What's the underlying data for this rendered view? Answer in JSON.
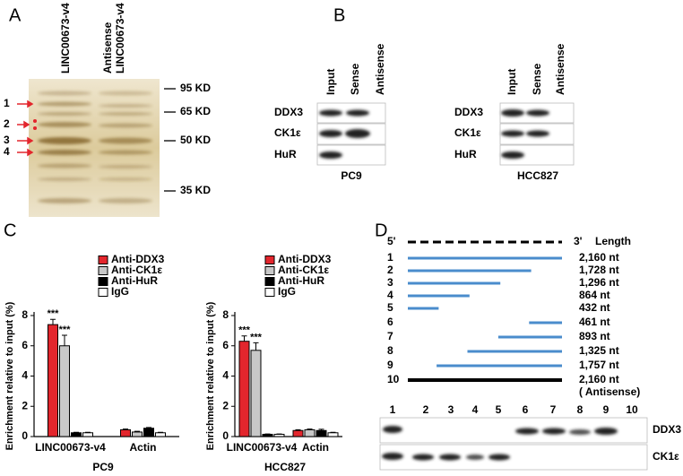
{
  "panel_a": {
    "label": "A",
    "lanes": [
      [
        "LINC00673-v4"
      ],
      [
        "Antisense",
        "LINC00673-v4"
      ]
    ],
    "markers": [
      "95 KD",
      "65 KD",
      "50 KD",
      "35 KD"
    ],
    "bands": [
      "1",
      "2",
      "3",
      "4"
    ]
  },
  "panel_b": {
    "label": "B",
    "blots": [
      {
        "cell": "PC9",
        "columns": [
          "Input",
          "Sense",
          "Antisense"
        ],
        "rows": [
          "DDX3",
          "CK1ε",
          "HuR"
        ]
      },
      {
        "cell": "HCC827",
        "columns": [
          "Input",
          "Sense",
          "Antisense"
        ],
        "rows": [
          "DDX3",
          "CK1ε",
          "HuR"
        ]
      }
    ]
  },
  "panel_c": {
    "label": "C"
  },
  "chart_data": [
    {
      "type": "bar",
      "title": "PC9",
      "ylabel": "Enrichment relative to input (%)",
      "categories": [
        "LINC00673-v4",
        "Actin"
      ],
      "ylim": [
        0,
        8
      ],
      "yticks": [
        0,
        2,
        4,
        6,
        8
      ],
      "series": [
        {
          "name": "Anti-DDX3",
          "color": "#e3262d",
          "values": [
            7.4,
            0.45
          ],
          "errors": [
            0.35,
            0.05
          ],
          "annotations": [
            "***",
            null
          ]
        },
        {
          "name": "Anti-CK1ε",
          "color": "#c8c8c8",
          "values": [
            6.0,
            0.3
          ],
          "errors": [
            0.7,
            0.05
          ],
          "annotations": [
            "***",
            null
          ]
        },
        {
          "name": "Anti-HuR",
          "color": "#000000",
          "values": [
            0.25,
            0.55
          ],
          "errors": [
            0.03,
            0.05
          ],
          "annotations": [
            null,
            null
          ]
        },
        {
          "name": "IgG",
          "color": "#ffffff",
          "values": [
            0.25,
            0.25
          ],
          "errors": [
            0.03,
            0.03
          ],
          "annotations": [
            null,
            null
          ]
        }
      ]
    },
    {
      "type": "bar",
      "title": "HCC827",
      "ylabel": "Enrichment relative to input (%)",
      "categories": [
        "LINC00673-v4",
        "Actin"
      ],
      "ylim": [
        0,
        8
      ],
      "yticks": [
        0,
        2,
        4,
        6,
        8
      ],
      "series": [
        {
          "name": "Anti-DDX3",
          "color": "#e3262d",
          "values": [
            6.3,
            0.4
          ],
          "errors": [
            0.35,
            0.05
          ],
          "annotations": [
            "***",
            null
          ]
        },
        {
          "name": "Anti-CK1ε",
          "color": "#c8c8c8",
          "values": [
            5.7,
            0.45
          ],
          "errors": [
            0.5,
            0.05
          ],
          "annotations": [
            "***",
            null
          ]
        },
        {
          "name": "Anti-HuR",
          "color": "#000000",
          "values": [
            0.15,
            0.4
          ],
          "errors": [
            0.02,
            0.08
          ],
          "annotations": [
            null,
            null
          ]
        },
        {
          "name": "IgG",
          "color": "#ffffff",
          "values": [
            0.15,
            0.25
          ],
          "errors": [
            0.02,
            0.03
          ],
          "annotations": [
            null,
            null
          ]
        }
      ]
    }
  ],
  "panel_d": {
    "label": "D",
    "five_end": "5'",
    "three_end": "3'",
    "length_header": "Length",
    "fragments": [
      {
        "number": "1",
        "length": "2,160 nt",
        "start": 0,
        "end": 2160,
        "color": "#4a8ccc"
      },
      {
        "number": "2",
        "length": "1,728 nt",
        "start": 0,
        "end": 1728,
        "color": "#4a8ccc"
      },
      {
        "number": "3",
        "length": "1,296 nt",
        "start": 0,
        "end": 1296,
        "color": "#4a8ccc"
      },
      {
        "number": "4",
        "length": "864 nt",
        "start": 0,
        "end": 864,
        "color": "#4a8ccc"
      },
      {
        "number": "5",
        "length": "432 nt",
        "start": 0,
        "end": 432,
        "color": "#4a8ccc"
      },
      {
        "number": "6",
        "length": "461 nt",
        "start": 1699,
        "end": 2160,
        "color": "#4a8ccc"
      },
      {
        "number": "7",
        "length": "893 nt",
        "start": 1267,
        "end": 2160,
        "color": "#4a8ccc"
      },
      {
        "number": "8",
        "length": "1,325 nt",
        "start": 835,
        "end": 2160,
        "color": "#4a8ccc"
      },
      {
        "number": "9",
        "length": "1,757 nt",
        "start": 403,
        "end": 2160,
        "color": "#4a8ccc"
      },
      {
        "number": "10",
        "length": "2,160 nt",
        "start": 0,
        "end": 2160,
        "color": "#000000",
        "note": "( Antisense)"
      }
    ],
    "lanes": [
      "1",
      "2",
      "3",
      "4",
      "5",
      "6",
      "7",
      "8",
      "9",
      "10"
    ],
    "rows": [
      "DDX3",
      "CK1ε"
    ]
  }
}
